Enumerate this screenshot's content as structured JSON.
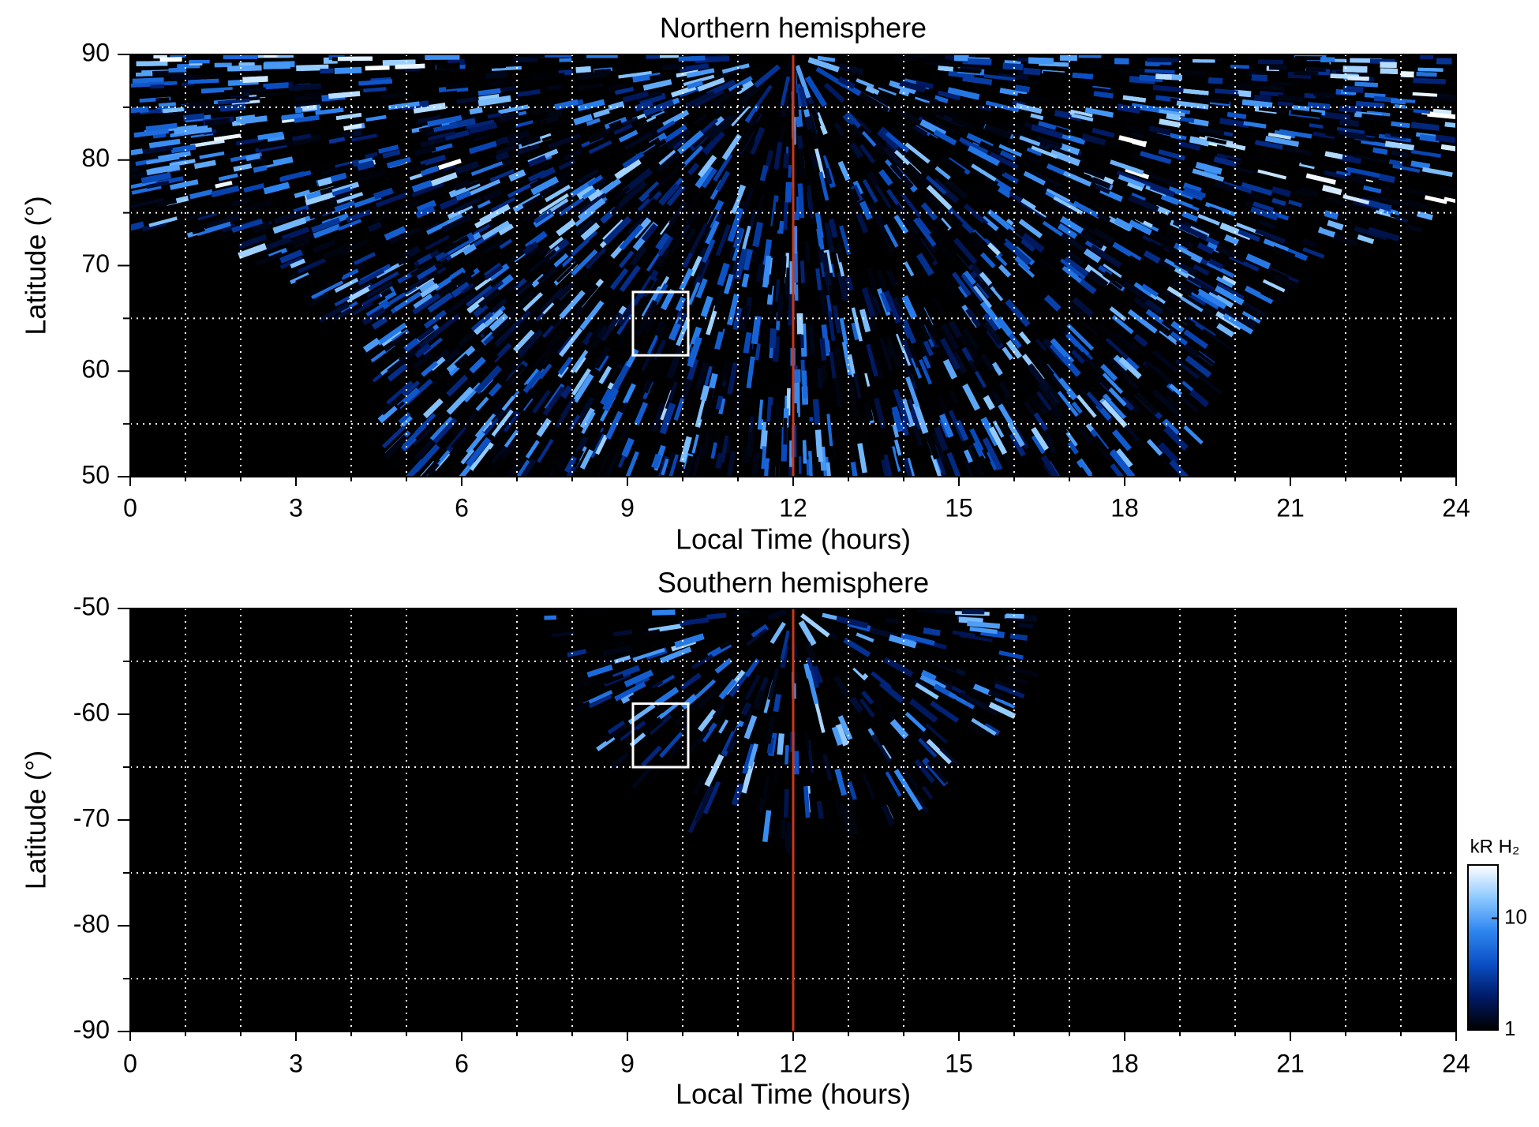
{
  "chart_data": [
    {
      "type": "heatmap",
      "hemisphere": "north",
      "title": "Northern hemisphere",
      "xlabel": "Local Time (hours)",
      "ylabel": "Latitude (°)",
      "xlim": [
        0,
        24
      ],
      "ylim": [
        50,
        90
      ],
      "xticks": [
        0,
        3,
        6,
        9,
        12,
        15,
        18,
        21,
        24
      ],
      "yticks": [
        50,
        60,
        70,
        80,
        90
      ],
      "minor_xticks": [
        1,
        2,
        4,
        5,
        7,
        8,
        10,
        11,
        13,
        14,
        16,
        17,
        19,
        20,
        22,
        23
      ],
      "minor_yticks": [
        55,
        65,
        75,
        85
      ],
      "grid": true,
      "marker_line": {
        "x": 12,
        "color": "#c8391a"
      },
      "box": {
        "x": [
          9.1,
          10.1
        ],
        "y": [
          61.5,
          67.5
        ]
      }
    },
    {
      "type": "heatmap",
      "hemisphere": "south",
      "title": "Southern hemisphere",
      "xlabel": "Local Time (hours)",
      "ylabel": "Latitude (°)",
      "xlim": [
        0,
        24
      ],
      "ylim": [
        -90,
        -50
      ],
      "xticks": [
        0,
        3,
        6,
        9,
        12,
        15,
        18,
        21,
        24
      ],
      "yticks": [
        -90,
        -80,
        -70,
        -60,
        -50
      ],
      "minor_xticks": [
        1,
        2,
        4,
        5,
        7,
        8,
        10,
        11,
        13,
        14,
        16,
        17,
        19,
        20,
        22,
        23
      ],
      "minor_yticks": [
        -85,
        -75,
        -65,
        -55
      ],
      "grid": true,
      "marker_line": {
        "x": 12,
        "color": "#c8391a"
      },
      "box": {
        "x": [
          9.1,
          10.1
        ],
        "y": [
          -65,
          -59
        ]
      }
    }
  ],
  "colorbar": {
    "label": "kR H₂",
    "scale": "log",
    "lim": [
      1,
      30
    ],
    "ticks": [
      1,
      10
    ],
    "colors": [
      "#000000",
      "#001a66",
      "#0a4fc4",
      "#2f86f0",
      "#8cc8ff",
      "#ffffff"
    ]
  }
}
